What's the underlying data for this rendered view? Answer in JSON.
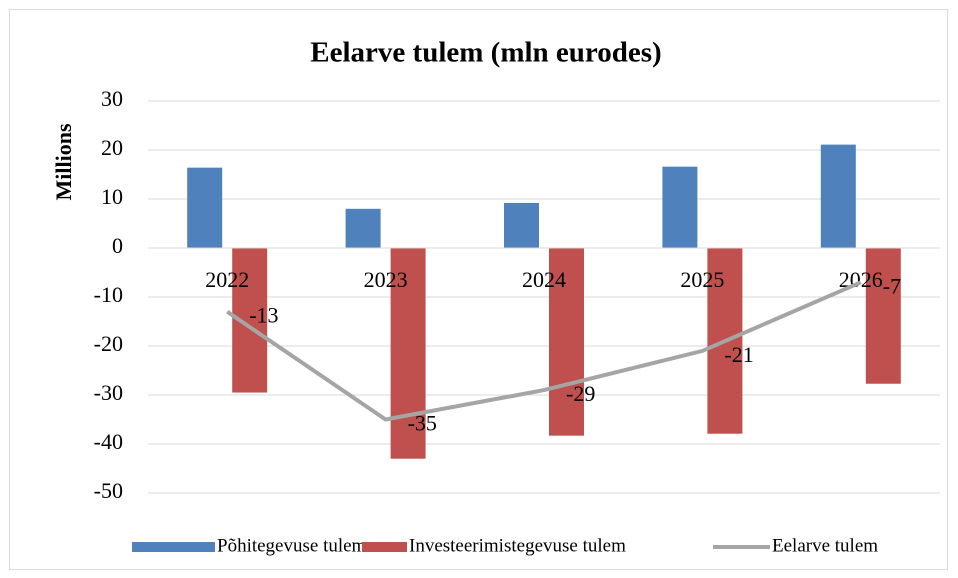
{
  "chart_data": {
    "type": "bar",
    "title": "Eelarve tulem (mln eurodes)",
    "ylabel": "Millions",
    "categories": [
      "2022",
      "2023",
      "2024",
      "2025",
      "2026"
    ],
    "series": [
      {
        "name": "Põhitegevuse tulem",
        "color": "#4f81bd",
        "type": "bar",
        "values": [
          16.4,
          8.0,
          9.2,
          16.6,
          21.1
        ]
      },
      {
        "name": "Investeerimistegevuse tulem",
        "color": "#c0504d",
        "type": "bar",
        "values": [
          -29.5,
          -43.0,
          -38.3,
          -37.9,
          -27.7
        ]
      },
      {
        "name": "Eelarve tulem",
        "color": "#a5a5a5",
        "type": "line",
        "values": [
          -13,
          -35,
          -29,
          -21,
          -7
        ],
        "data_labels": true
      }
    ],
    "ylim": [
      -50,
      30
    ],
    "yticks": [
      -50,
      -40,
      -30,
      -20,
      -10,
      0,
      10,
      20,
      30
    ],
    "grid": true,
    "legend": "bottom"
  }
}
